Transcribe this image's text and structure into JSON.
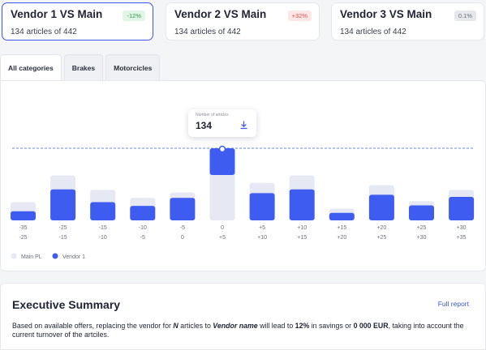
{
  "vendor_cards": [
    {
      "title": "Vendor 1 VS Main",
      "badge": "-12%",
      "subtitle": "134 articles of 442"
    },
    {
      "title": "Vendor 2 VS Main",
      "badge": "+32%",
      "subtitle": "134 articles of 442"
    },
    {
      "title": "Vendor 3 VS Main",
      "badge": "0.1%",
      "subtitle": "134 articles of 442"
    }
  ],
  "tabs": [
    "All categories",
    "Brakes",
    "Motorcicles"
  ],
  "active_tab": "All categories",
  "colors": {
    "accent": "#3a57e8",
    "main_pl": "#e6e8f4",
    "vendor1": "#3f5cf0",
    "positive": "#2e9a4c",
    "negative": "#d9534f"
  },
  "tooltip": {
    "label": "Number of articles",
    "value": "134",
    "icon": "download-icon"
  },
  "chart_data": {
    "type": "bar",
    "categories": [
      "-35 -25",
      "-25 -15",
      "-15 -10",
      "-10 -5",
      "-5 0",
      "0 +5",
      "+5 +10",
      "+10 +15",
      "+15 +20",
      "+20 +25",
      "+25 +30",
      "+30 +35"
    ],
    "tick_labels_top": [
      "-35",
      "-25",
      "-15",
      "-10",
      "-5",
      "0",
      "+5",
      "+10",
      "+15",
      "+20",
      "+25",
      "+30"
    ],
    "tick_labels_bottom": [
      "-25",
      "-15",
      "-10",
      "-5",
      "0",
      "+5",
      "+10",
      "+15",
      "+20",
      "+25",
      "+30",
      "+35"
    ],
    "series": [
      {
        "name": "Main PL",
        "values": [
          34,
          84,
          57,
          42,
          52,
          134,
          70,
          84,
          22,
          66,
          36,
          57
        ]
      },
      {
        "name": "Vendor 1",
        "values": [
          17,
          58,
          34,
          27,
          42,
          88,
          51,
          58,
          14,
          48,
          28,
          44
        ]
      }
    ],
    "reference_line": 88,
    "highlight_index": 5,
    "legend": [
      "Main PL",
      "Vendor 1"
    ],
    "legend_position": "bottom-left"
  },
  "summary": {
    "title": "Executive Summary",
    "link": "Full report",
    "text_1": "Based on available offers, replacing the vendor for ",
    "text_n": "N",
    "text_2": " articles to ",
    "text_vendor": "Vendor name",
    "text_3": " will lead to ",
    "text_pct": "12%",
    "text_4": " in savings or ",
    "text_eur": "0 000 EUR",
    "text_5": ", taking into account the current turnover of the artciles."
  }
}
